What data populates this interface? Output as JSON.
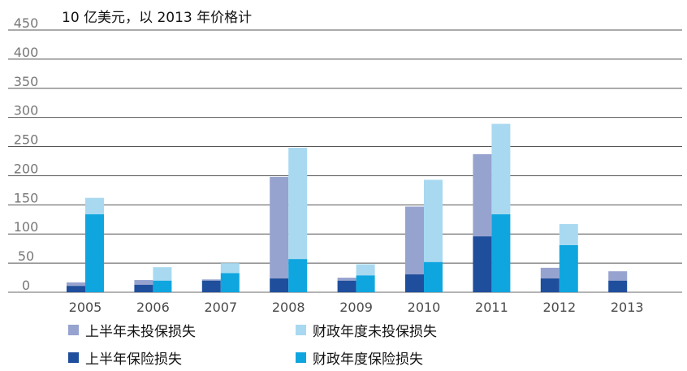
{
  "chart_data": {
    "type": "bar",
    "subtype": "grouped-stacked",
    "title": "10 亿美元，以 2013 年价格计",
    "categories": [
      "2005",
      "2006",
      "2007",
      "2008",
      "2009",
      "2010",
      "2011",
      "2012",
      "2013"
    ],
    "ylim": [
      0,
      450
    ],
    "yticks": [
      0,
      50,
      100,
      150,
      200,
      250,
      300,
      350,
      400,
      450
    ],
    "grid": "horizontal",
    "legend_position": "bottom",
    "groups": [
      {
        "name": "上半年",
        "series": [
          {
            "name": "上半年保险损失",
            "color": "#1f4e9c",
            "values": [
              11,
              13,
              20,
              24,
              20,
              31,
              96,
              24,
              20
            ]
          },
          {
            "name": "上半年未投保损失",
            "color": "#97a3cf",
            "values": [
              17,
              21,
              22,
              198,
              25,
              147,
              237,
              42,
              36
            ]
          }
        ]
      },
      {
        "name": "财政年度",
        "series": [
          {
            "name": "财政年度保险损失",
            "color": "#0fa6df",
            "values": [
              134,
              20,
              33,
              57,
              29,
              52,
              134,
              81,
              null
            ]
          },
          {
            "name": "财政年度未投保损失",
            "color": "#a8d9f1",
            "values": [
              162,
              43,
              50,
              248,
              48,
              193,
              289,
              117,
              null
            ]
          }
        ]
      }
    ]
  },
  "legend": [
    {
      "label": "上半年未投保损失",
      "color": "#97a3cf"
    },
    {
      "label": "财政年度未投保损失",
      "color": "#a8d9f1"
    },
    {
      "label": "上半年保险损失",
      "color": "#1f4e9c"
    },
    {
      "label": "财政年度保险损失",
      "color": "#0fa6df"
    }
  ]
}
